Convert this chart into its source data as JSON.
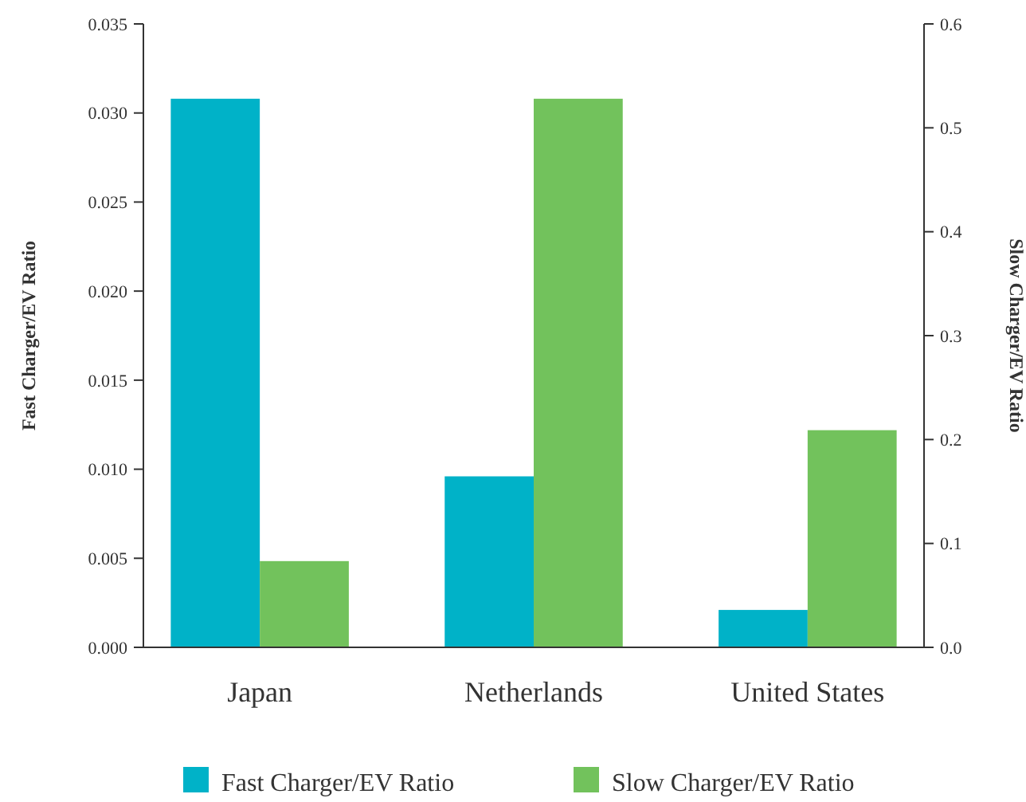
{
  "chart_data": {
    "type": "bar",
    "categories": [
      "Japan",
      "Netherlands",
      "United States"
    ],
    "ylabel": "Fast Charger/EV Ratio",
    "y2label": "Slow Charger/EV Ratio",
    "series": [
      {
        "name": "Fast Charger/EV Ratio",
        "color": "#00b2c8",
        "values": [
          0.0308,
          0.0096,
          0.0021
        ]
      },
      {
        "name": "Slow Charger/EV Ratio",
        "color": "#72c25c",
        "values": [
          0.083,
          0.528,
          0.209
        ],
        "axis": "y2"
      }
    ],
    "ylim": [
      0,
      0.035
    ],
    "yticks": [
      {
        "value": 0,
        "label": "0.000"
      },
      {
        "value": 0.005,
        "label": "0.005"
      },
      {
        "value": 0.01,
        "label": "0.010"
      },
      {
        "value": 0.015,
        "label": "0.015"
      },
      {
        "value": 0.02,
        "label": "0.020"
      },
      {
        "value": 0.025,
        "label": "0.025"
      },
      {
        "value": 0.03,
        "label": "0.030"
      },
      {
        "value": 0.035,
        "label": "0.035"
      }
    ],
    "y2lim": [
      0,
      0.6
    ],
    "y2ticks": [
      {
        "value": 0,
        "label": "0.0"
      },
      0.1,
      0.2,
      0.3,
      0.4,
      0.5,
      0.6
    ],
    "legend": "bottom",
    "grid": false
  }
}
